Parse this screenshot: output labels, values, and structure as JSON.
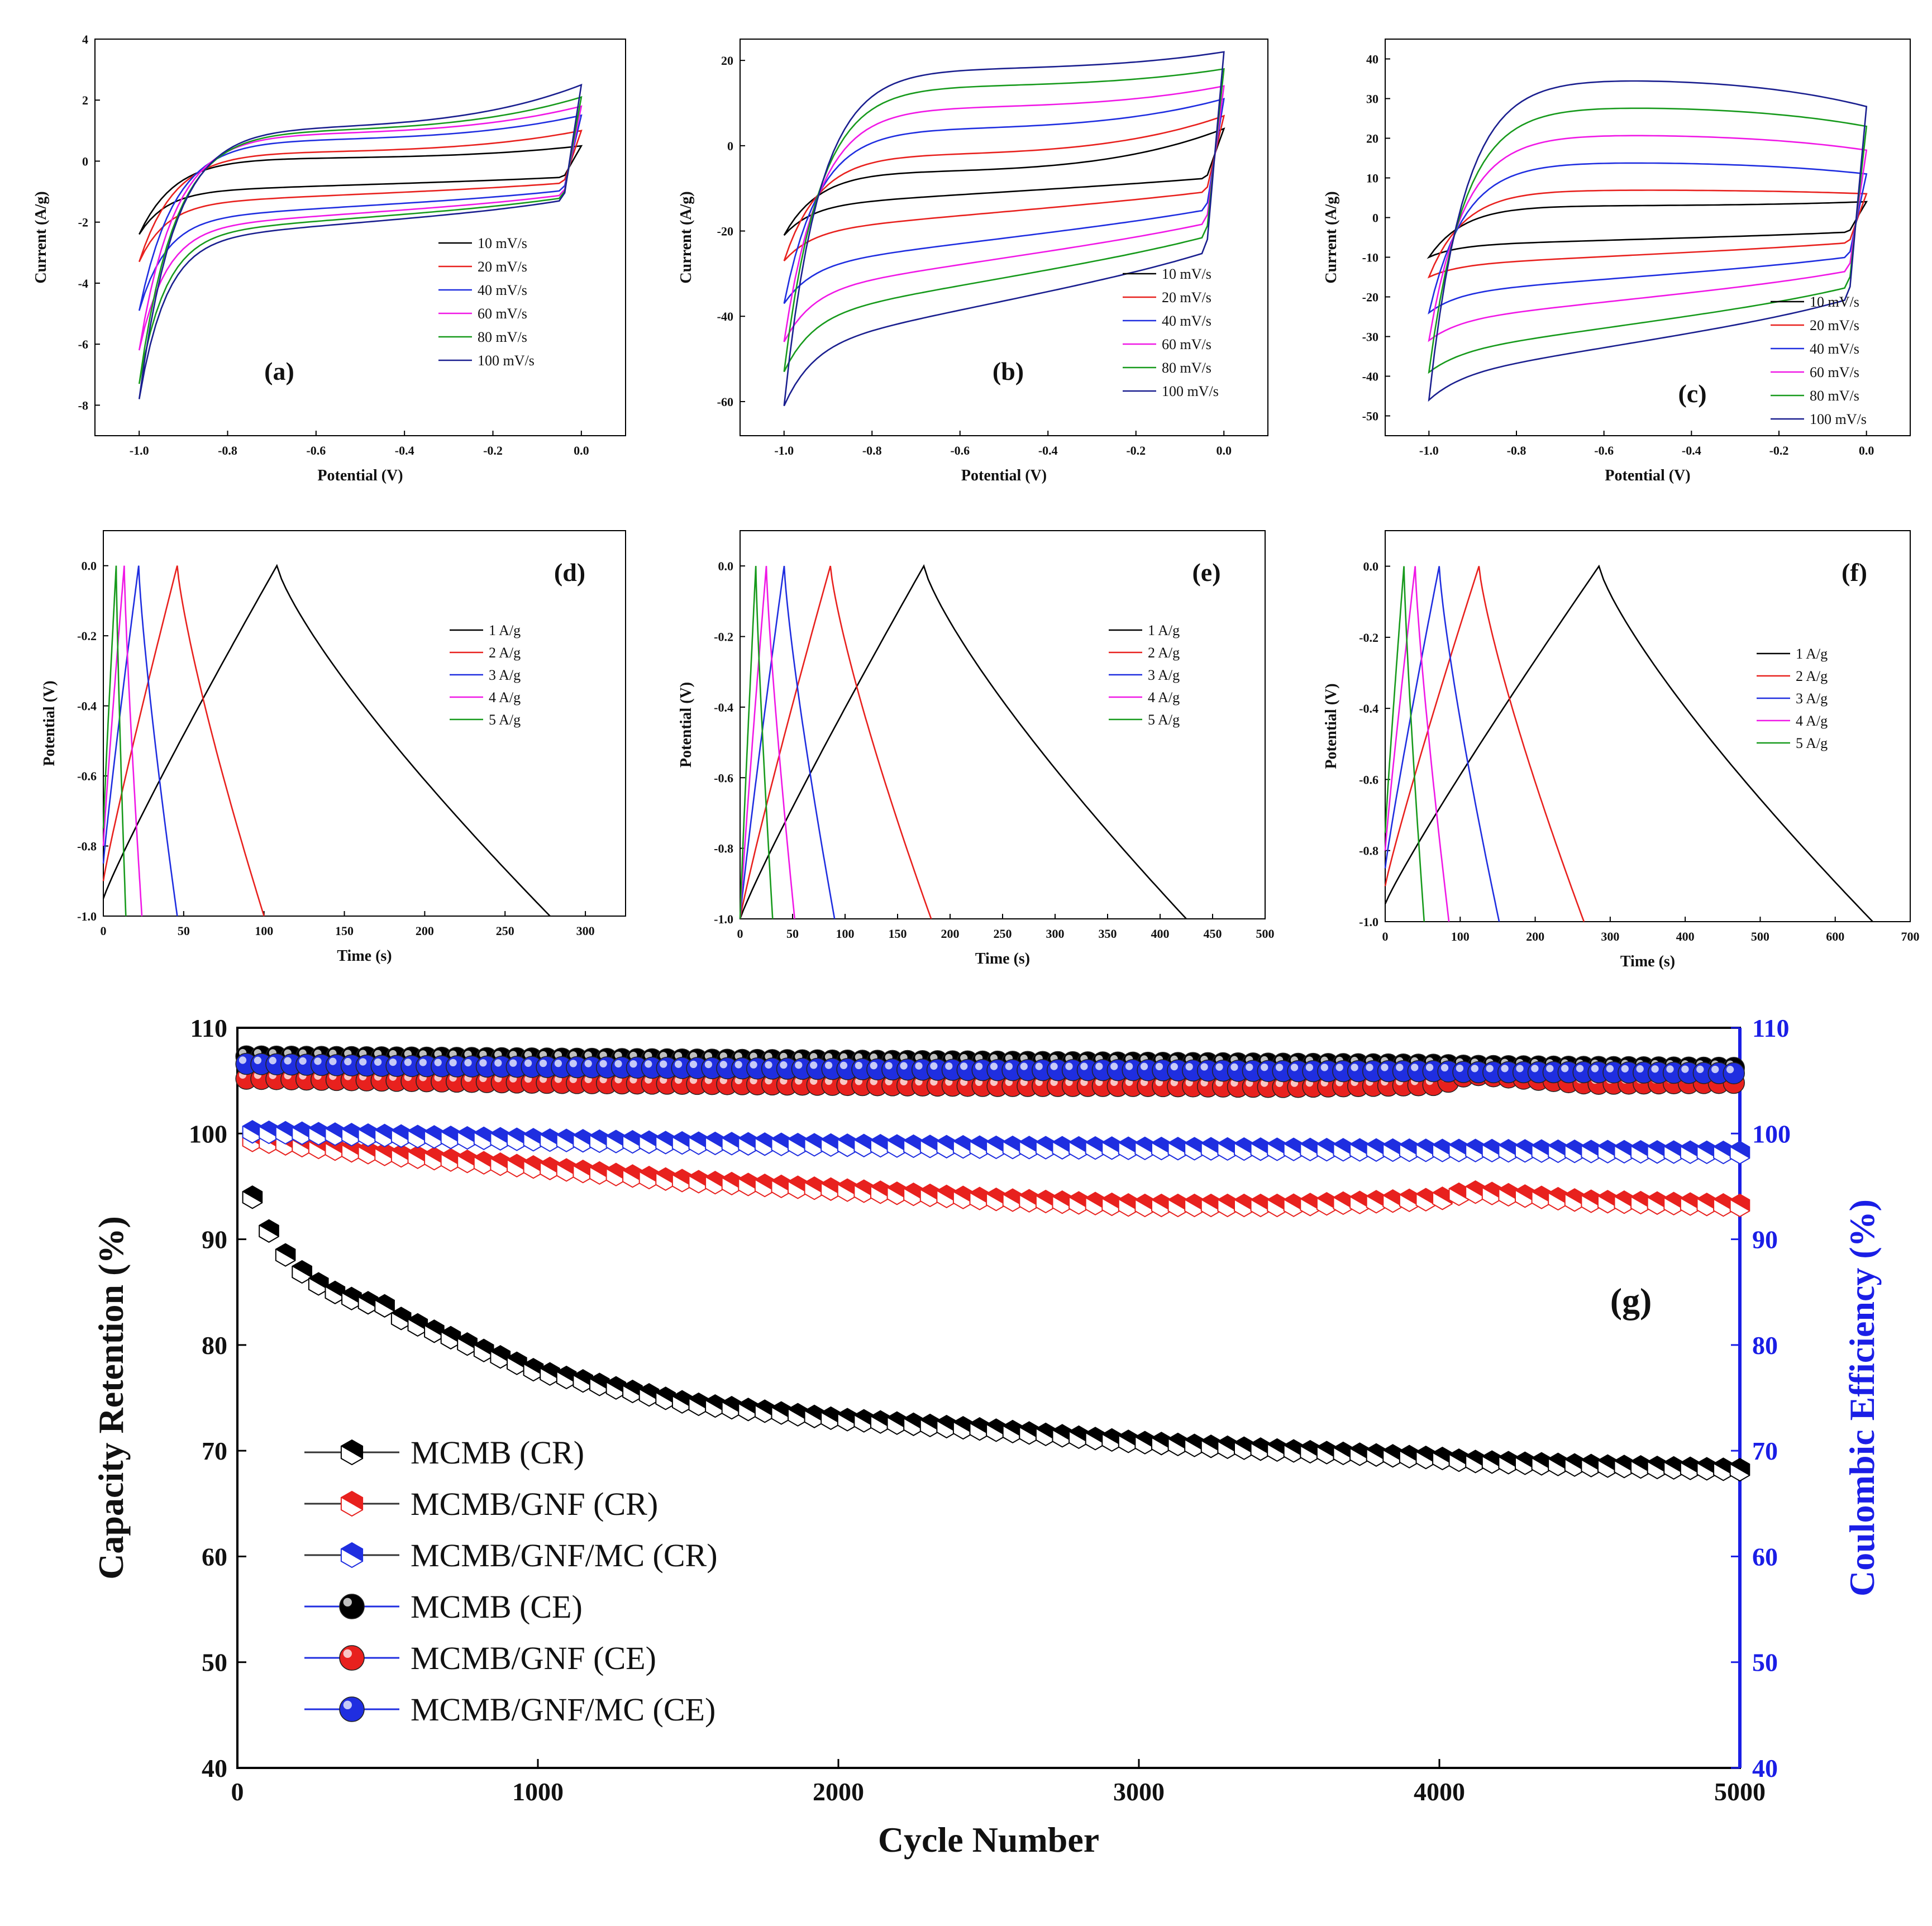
{
  "chart_data": [
    {
      "id": "a",
      "type": "line",
      "subtype": "cyclic-voltammetry",
      "panel_label": "(a)",
      "xlabel": "Potential (V)",
      "ylabel": "Current (A/g)",
      "xlim": [
        -1.1,
        0.1
      ],
      "ylim": [
        -9,
        4
      ],
      "xticks": [
        -1.0,
        -0.8,
        -0.6,
        -0.4,
        -0.2,
        0.0
      ],
      "xtick_labels": [
        "-1.0",
        "-0.8",
        "-0.6",
        "-0.4",
        "-0.2",
        "0.0"
      ],
      "yticks": [
        -8,
        -6,
        -4,
        -2,
        0,
        2,
        4
      ],
      "ytick_labels": [
        "-8",
        "-6",
        "-4",
        "-2",
        "0",
        "2",
        "4"
      ],
      "legend_position": "center-right",
      "series": [
        {
          "name": "10 mV/s",
          "color": "#000000",
          "end_value": 0.5,
          "start_value": -2.4,
          "plateau_value": 0.1,
          "lower_value": -1.0
        },
        {
          "name": "20 mV/s",
          "color": "#e8211e",
          "end_value": 1.0,
          "start_value": -3.3,
          "plateau_value": 0.3,
          "lower_value": -1.4
        },
        {
          "name": "40 mV/s",
          "color": "#1f2ee0",
          "end_value": 1.5,
          "start_value": -4.9,
          "plateau_value": 0.7,
          "lower_value": -1.9
        },
        {
          "name": "60 mV/s",
          "color": "#f018e6",
          "end_value": 1.8,
          "start_value": -6.2,
          "plateau_value": 0.9,
          "lower_value": -2.2
        },
        {
          "name": "80 mV/s",
          "color": "#179a1c",
          "end_value": 2.1,
          "start_value": -7.3,
          "plateau_value": 1.0,
          "lower_value": -2.4
        },
        {
          "name": "100 mV/s",
          "color": "#1a1f8f",
          "end_value": 2.5,
          "start_value": -7.8,
          "plateau_value": 1.1,
          "lower_value": -2.6
        }
      ]
    },
    {
      "id": "b",
      "type": "line",
      "subtype": "cyclic-voltammetry",
      "panel_label": "(b)",
      "xlabel": "Potential (V)",
      "ylabel": "Current (A/g)",
      "xlim": [
        -1.1,
        0.1
      ],
      "ylim": [
        -68,
        25
      ],
      "xticks": [
        -1.0,
        -0.8,
        -0.6,
        -0.4,
        -0.2,
        0.0
      ],
      "xtick_labels": [
        "-1.0",
        "-0.8",
        "-0.6",
        "-0.4",
        "-0.2",
        "0.0"
      ],
      "yticks": [
        -60,
        -40,
        -20,
        0,
        20
      ],
      "ytick_labels": [
        "-60",
        "-40",
        "-20",
        "0",
        "20"
      ],
      "legend_position": "bottom-right",
      "series": [
        {
          "name": "10 mV/s",
          "color": "#000000",
          "end_value": 4,
          "start_value": -21,
          "plateau_value": -6,
          "lower_value": -14
        },
        {
          "name": "20 mV/s",
          "color": "#e8211e",
          "end_value": 7,
          "start_value": -27,
          "plateau_value": -2,
          "lower_value": -20
        },
        {
          "name": "40 mV/s",
          "color": "#1f2ee0",
          "end_value": 11,
          "start_value": -37,
          "plateau_value": 4,
          "lower_value": -28
        },
        {
          "name": "60 mV/s",
          "color": "#f018e6",
          "end_value": 14,
          "start_value": -46,
          "plateau_value": 9,
          "lower_value": -34
        },
        {
          "name": "80 mV/s",
          "color": "#179a1c",
          "end_value": 18,
          "start_value": -53,
          "plateau_value": 14,
          "lower_value": -40
        },
        {
          "name": "100 mV/s",
          "color": "#1a1f8f",
          "end_value": 22,
          "start_value": -61,
          "plateau_value": 18,
          "lower_value": -47
        }
      ]
    },
    {
      "id": "c",
      "type": "line",
      "subtype": "cyclic-voltammetry",
      "panel_label": "(c)",
      "xlabel": "Potential (V)",
      "ylabel": "Current (A/g)",
      "xlim": [
        -1.1,
        0.1
      ],
      "ylim": [
        -55,
        45
      ],
      "xticks": [
        -1.0,
        -0.8,
        -0.6,
        -0.4,
        -0.2,
        0.0
      ],
      "xtick_labels": [
        "-1.0",
        "-0.8",
        "-0.6",
        "-0.4",
        "-0.2",
        "0.0"
      ],
      "yticks": [
        -50,
        -40,
        -30,
        -20,
        -10,
        0,
        10,
        20,
        30,
        40
      ],
      "ytick_labels": [
        "-50",
        "-40",
        "-30",
        "-20",
        "-10",
        "0",
        "10",
        "20",
        "30",
        "40"
      ],
      "legend_position": "bottom-right",
      "series": [
        {
          "name": "10 mV/s",
          "color": "#000000",
          "end_value": 4,
          "start_value": -10,
          "plateau_value": 3,
          "lower_value": -7
        },
        {
          "name": "20 mV/s",
          "color": "#e8211e",
          "end_value": 6,
          "start_value": -15,
          "plateau_value": 7,
          "lower_value": -12
        },
        {
          "name": "40 mV/s",
          "color": "#1f2ee0",
          "end_value": 11,
          "start_value": -24,
          "plateau_value": 14,
          "lower_value": -19
        },
        {
          "name": "60 mV/s",
          "color": "#f018e6",
          "end_value": 17,
          "start_value": -31,
          "plateau_value": 21,
          "lower_value": -26
        },
        {
          "name": "80 mV/s",
          "color": "#179a1c",
          "end_value": 23,
          "start_value": -39,
          "plateau_value": 28,
          "lower_value": -34
        },
        {
          "name": "100 mV/s",
          "color": "#1a1f8f",
          "end_value": 28,
          "start_value": -46,
          "plateau_value": 35,
          "lower_value": -40
        }
      ]
    },
    {
      "id": "d",
      "type": "line",
      "subtype": "galvanostatic-charge-discharge",
      "panel_label": "(d)",
      "xlabel": "Time (s)",
      "ylabel": "Potential (V)",
      "xlim": [
        0,
        325
      ],
      "ylim": [
        -1.0,
        0.1
      ],
      "xticks": [
        0,
        50,
        100,
        150,
        200,
        250,
        300
      ],
      "xtick_labels": [
        "0",
        "50",
        "100",
        "150",
        "200",
        "250",
        "300"
      ],
      "yticks": [
        -1.0,
        -0.8,
        -0.6,
        -0.4,
        -0.2,
        0.0
      ],
      "ytick_labels": [
        "-1.0",
        "-0.8",
        "-0.6",
        "-0.4",
        "-0.2",
        "0.0"
      ],
      "legend_position": "upper-right",
      "series": [
        {
          "name": "1 A/g",
          "color": "#000000",
          "start_potential": -0.95,
          "peak_time": 108,
          "end_time": 278
        },
        {
          "name": "2 A/g",
          "color": "#e8211e",
          "start_potential": -0.9,
          "peak_time": 46,
          "end_time": 100
        },
        {
          "name": "3 A/g",
          "color": "#1f2ee0",
          "start_potential": -0.85,
          "peak_time": 22,
          "end_time": 46
        },
        {
          "name": "4 A/g",
          "color": "#f018e6",
          "start_potential": -0.8,
          "peak_time": 13,
          "end_time": 24
        },
        {
          "name": "5 A/g",
          "color": "#179a1c",
          "start_potential": -0.75,
          "peak_time": 8,
          "end_time": 14
        }
      ]
    },
    {
      "id": "e",
      "type": "line",
      "subtype": "galvanostatic-charge-discharge",
      "panel_label": "(e)",
      "xlabel": "Time (s)",
      "ylabel": "Potential (V)",
      "xlim": [
        0,
        500
      ],
      "ylim": [
        -1.0,
        0.1
      ],
      "xticks": [
        0,
        50,
        100,
        150,
        200,
        250,
        300,
        350,
        400,
        450,
        500
      ],
      "xtick_labels": [
        "0",
        "50",
        "100",
        "150",
        "200",
        "250",
        "300",
        "350",
        "400",
        "450",
        "500"
      ],
      "yticks": [
        -1.0,
        -0.8,
        -0.6,
        -0.4,
        -0.2,
        0.0
      ],
      "ytick_labels": [
        "-1.0",
        "-0.8",
        "-0.6",
        "-0.4",
        "-0.2",
        "0.0"
      ],
      "legend_position": "upper-right",
      "series": [
        {
          "name": "1 A/g",
          "color": "#000000",
          "start_potential": -1.0,
          "peak_time": 175,
          "end_time": 425
        },
        {
          "name": "2 A/g",
          "color": "#e8211e",
          "start_potential": -1.0,
          "peak_time": 86,
          "end_time": 182
        },
        {
          "name": "3 A/g",
          "color": "#1f2ee0",
          "start_potential": -1.0,
          "peak_time": 42,
          "end_time": 90
        },
        {
          "name": "4 A/g",
          "color": "#f018e6",
          "start_potential": -1.0,
          "peak_time": 25,
          "end_time": 52
        },
        {
          "name": "5 A/g",
          "color": "#179a1c",
          "start_potential": -1.0,
          "peak_time": 15,
          "end_time": 31
        }
      ]
    },
    {
      "id": "f",
      "type": "line",
      "subtype": "galvanostatic-charge-discharge",
      "panel_label": "(f)",
      "xlabel": "Time (s)",
      "ylabel": "Potential (V)",
      "xlim": [
        0,
        700
      ],
      "ylim": [
        -1.0,
        0.1
      ],
      "xticks": [
        0,
        100,
        200,
        300,
        400,
        500,
        600,
        700
      ],
      "xtick_labels": [
        "0",
        "100",
        "200",
        "300",
        "400",
        "500",
        "600",
        "700"
      ],
      "yticks": [
        -1.0,
        -0.8,
        -0.6,
        -0.4,
        -0.2,
        0.0
      ],
      "ytick_labels": [
        "-1.0",
        "-0.8",
        "-0.6",
        "-0.4",
        "-0.2",
        "0.0"
      ],
      "legend_position": "upper-right",
      "series": [
        {
          "name": "1 A/g",
          "color": "#000000",
          "start_potential": -0.95,
          "peak_time": 285,
          "end_time": 650
        },
        {
          "name": "2 A/g",
          "color": "#e8211e",
          "start_potential": -0.9,
          "peak_time": 125,
          "end_time": 265
        },
        {
          "name": "3 A/g",
          "color": "#1f2ee0",
          "start_potential": -0.85,
          "peak_time": 72,
          "end_time": 152
        },
        {
          "name": "4 A/g",
          "color": "#f018e6",
          "start_potential": -0.8,
          "peak_time": 40,
          "end_time": 85
        },
        {
          "name": "5 A/g",
          "color": "#179a1c",
          "start_potential": -0.75,
          "peak_time": 25,
          "end_time": 52
        }
      ]
    },
    {
      "id": "g",
      "type": "scatter",
      "subtype": "cycling-stability",
      "panel_label": "(g)",
      "xlabel": "Cycle Number",
      "ylabel": "Capacity Retention (%)",
      "y2label": "Coulombic Efficiency (%)",
      "xlim": [
        0,
        5000
      ],
      "ylim": [
        40,
        110
      ],
      "y2lim": [
        40,
        110
      ],
      "xticks": [
        0,
        1000,
        2000,
        3000,
        4000,
        5000
      ],
      "xtick_labels": [
        "0",
        "1000",
        "2000",
        "3000",
        "4000",
        "5000"
      ],
      "yticks": [
        40,
        50,
        60,
        70,
        80,
        90,
        100,
        110
      ],
      "ytick_labels": [
        "40",
        "50",
        "60",
        "70",
        "80",
        "90",
        "100",
        "110"
      ],
      "y2tick_labels": [
        "40",
        "50",
        "60",
        "70",
        "80",
        "90",
        "100",
        "110"
      ],
      "y2_color": "#1a1ee6",
      "legend_position": "lower-left",
      "x": [
        0,
        500,
        1000,
        1500,
        2000,
        2500,
        3000,
        3500,
        4000,
        4100,
        4500,
        5000
      ],
      "series": [
        {
          "name": "MCMB (CR)",
          "color": "#000000",
          "marker": "half-hexagon",
          "values": [
            98,
            83,
            77.5,
            74.5,
            73,
            72,
            70.8,
            70,
            69.3,
            69,
            68.6,
            68.2
          ]
        },
        {
          "name": "MCMB/GNF (CR)",
          "color": "#e8211e",
          "marker": "half-hexagon",
          "values": [
            99.5,
            98,
            96.8,
            95.5,
            94.7,
            93.8,
            93.2,
            93.2,
            93.8,
            94.5,
            93.6,
            93.2
          ]
        },
        {
          "name": "MCMB/GNF/MC (CR)",
          "color": "#1f2ee0",
          "marker": "half-hexagon",
          "values": [
            100.2,
            99.8,
            99.4,
            99.1,
            98.9,
            98.7,
            98.6,
            98.5,
            98.4,
            98.4,
            98.3,
            98.2
          ]
        },
        {
          "name": "MCMB (CE)",
          "color": "#000000",
          "marker": "sphere",
          "values": [
            107.3,
            107.2,
            107.1,
            107.0,
            106.9,
            106.8,
            106.7,
            106.6,
            106.5,
            106.4,
            106.3,
            106.2
          ]
        },
        {
          "name": "MCMB/GNF (CE)",
          "color": "#e8211e",
          "marker": "sphere",
          "values": [
            105.2,
            105.0,
            104.8,
            104.7,
            104.6,
            104.5,
            104.5,
            104.4,
            104.6,
            105.6,
            104.7,
            104.8
          ]
        },
        {
          "name": "MCMB/GNF/MC (CE)",
          "color": "#1f2ee0",
          "marker": "sphere",
          "values": [
            106.6,
            106.4,
            106.3,
            106.2,
            106.1,
            106.0,
            106.0,
            105.9,
            105.9,
            105.8,
            105.8,
            105.7
          ]
        }
      ]
    }
  ]
}
